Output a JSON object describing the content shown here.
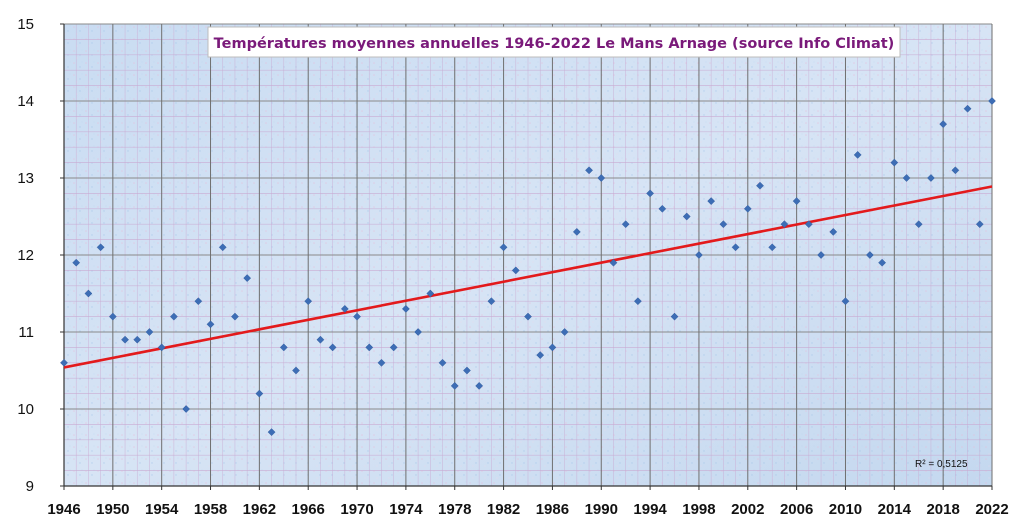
{
  "chart_data": {
    "type": "scatter",
    "title": "Températures moyennes annuelles 1946-2022 Le Mans Arnage (source Info Climat)",
    "xlabel": "",
    "ylabel": "",
    "xlim": [
      1946,
      2022
    ],
    "ylim": [
      9,
      15
    ],
    "x_ticks": [
      1946,
      1950,
      1954,
      1958,
      1962,
      1966,
      1970,
      1974,
      1978,
      1982,
      1986,
      1990,
      1994,
      1998,
      2002,
      2006,
      2010,
      2014,
      2018,
      2022
    ],
    "y_ticks": [
      9,
      10,
      11,
      12,
      13,
      14,
      15
    ],
    "grid": true,
    "legend": "none",
    "series": [
      {
        "marker_color": "#3d6db5",
        "x": [
          1946,
          1947,
          1948,
          1949,
          1950,
          1951,
          1952,
          1953,
          1954,
          1955,
          1956,
          1957,
          1958,
          1959,
          1960,
          1961,
          1962,
          1963,
          1964,
          1965,
          1966,
          1967,
          1968,
          1969,
          1970,
          1971,
          1972,
          1973,
          1974,
          1975,
          1976,
          1977,
          1978,
          1979,
          1980,
          1981,
          1982,
          1983,
          1984,
          1985,
          1986,
          1987,
          1988,
          1989,
          1990,
          1991,
          1992,
          1993,
          1994,
          1995,
          1996,
          1997,
          1998,
          1999,
          2000,
          2001,
          2002,
          2003,
          2004,
          2005,
          2006,
          2007,
          2008,
          2009,
          2010,
          2011,
          2012,
          2013,
          2014,
          2015,
          2016,
          2017,
          2018,
          2019,
          2020,
          2021,
          2022
        ],
        "y": [
          10.6,
          11.9,
          11.5,
          12.1,
          11.2,
          10.9,
          10.9,
          11.0,
          10.8,
          11.2,
          10.0,
          11.4,
          11.1,
          12.1,
          11.2,
          11.7,
          10.2,
          9.7,
          10.8,
          10.5,
          11.4,
          10.9,
          10.8,
          11.3,
          11.2,
          10.8,
          10.6,
          10.8,
          11.3,
          11.0,
          11.5,
          10.6,
          10.3,
          10.5,
          10.3,
          11.4,
          12.1,
          11.8,
          11.2,
          10.7,
          10.8,
          11.0,
          12.3,
          13.1,
          13.0,
          11.9,
          12.4,
          11.4,
          12.8,
          12.6,
          11.2,
          12.5,
          12.0,
          12.7,
          12.4,
          12.1,
          12.6,
          12.9,
          12.1,
          12.4,
          12.7,
          12.4,
          12.0,
          12.3,
          11.4,
          13.3,
          12.0,
          11.9,
          13.2,
          13.0,
          12.4,
          13.0,
          13.7,
          13.1,
          13.9,
          12.4,
          14.0
        ]
      }
    ],
    "trendline": {
      "type": "linear",
      "color": "#e31a1c",
      "x": [
        1946,
        2022
      ],
      "y": [
        10.54,
        12.89
      ],
      "label": "R² = 0,5125"
    }
  }
}
